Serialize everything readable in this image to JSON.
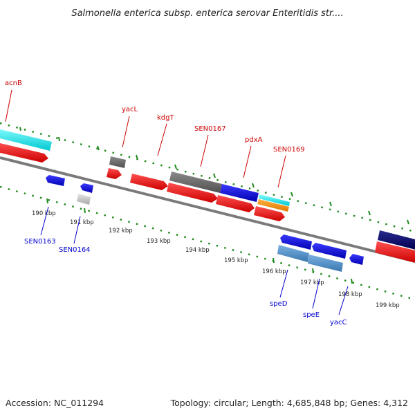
{
  "title": "Salmonella enterica subsp. enterica serovar Enteritidis str....",
  "footer": {
    "accession": "Accession: NC_011294",
    "summary": "Topology: circular; Length: 4,685,848 bp; Genes: 4,312"
  },
  "colors": {
    "forward_label": "#cc0000",
    "reverse_label": "#0000cc",
    "tick": "#228b22",
    "backbone": "#808080"
  },
  "kbp_ticks": [
    {
      "label": "190 kbp"
    },
    {
      "label": "191 kbp"
    },
    {
      "label": "192 kbp"
    },
    {
      "label": "193 kbp"
    },
    {
      "label": "194 kbp"
    },
    {
      "label": "195 kbp"
    },
    {
      "label": "196 kbp"
    },
    {
      "label": "197 kbp"
    },
    {
      "label": "198 kbp"
    },
    {
      "label": "199 kbp"
    }
  ],
  "forward_gene_labels": [
    "acnB",
    "yacL",
    "kdgT",
    "SEN0167",
    "pdxA",
    "SEN0169"
  ],
  "reverse_gene_labels": [
    "SEN0163",
    "SEN0164",
    "speD",
    "speE",
    "yacC"
  ]
}
